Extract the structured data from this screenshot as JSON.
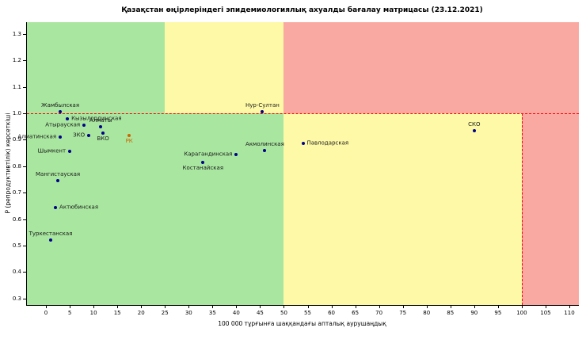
{
  "title": "Қазақстан өңірлеріндегі эпидемиологиялық ахуалды бағалау матрицасы  (23.12.2021)",
  "chart_data": {
    "type": "scatter",
    "title": "Қазақстан өңірлеріндегі эпидемиологиялық ахуалды бағалау матрицасы  (23.12.2021)",
    "xlabel": "100 000 тұрғынға шаққандағы апталық аурушаңдық",
    "ylabel": "Р (репродуктивтілік) көрсеткіші",
    "xlim": [
      -4,
      112
    ],
    "ylim": [
      0.275,
      1.345
    ],
    "grid": false,
    "legend": "none",
    "x_ticks": [
      0,
      5,
      10,
      15,
      20,
      25,
      30,
      35,
      40,
      45,
      50,
      55,
      60,
      65,
      70,
      75,
      80,
      85,
      90,
      95,
      100,
      105,
      110
    ],
    "y_ticks": [
      0.3,
      0.4,
      0.5,
      0.6,
      0.7,
      0.8,
      0.9,
      1.0,
      1.1,
      1.2,
      1.3
    ],
    "colors": {
      "green": "#a9e7a0",
      "yellow": "#fdf9a6",
      "red": "#f9a9a1",
      "point": "#00008b",
      "highlight": "#cc6600",
      "threshold": "#ff0000"
    },
    "zones": [
      {
        "name": "green-top",
        "x0": -4,
        "x1": 25,
        "y0": 1.0,
        "y1": 1.345,
        "color": "green"
      },
      {
        "name": "yellow-top",
        "x0": 25,
        "x1": 50,
        "y0": 1.0,
        "y1": 1.345,
        "color": "yellow"
      },
      {
        "name": "red-top",
        "x0": 50,
        "x1": 112,
        "y0": 1.0,
        "y1": 1.345,
        "color": "red"
      },
      {
        "name": "green-bottom",
        "x0": -4,
        "x1": 50,
        "y0": 0.275,
        "y1": 1.0,
        "color": "green"
      },
      {
        "name": "yellow-bottom",
        "x0": 50,
        "x1": 100,
        "y0": 0.275,
        "y1": 1.0,
        "color": "yellow"
      },
      {
        "name": "red-bottom",
        "x0": 100,
        "x1": 112,
        "y0": 0.275,
        "y1": 1.0,
        "color": "red"
      }
    ],
    "threshold_lines": [
      {
        "orientation": "h",
        "value": 1.0,
        "x0": -4,
        "x1": 112
      },
      {
        "orientation": "v",
        "value": 100,
        "y0": 0.275,
        "y1": 1.0
      }
    ],
    "points": [
      {
        "label": "Жамбылская",
        "x": 3,
        "y": 1.005,
        "anchor": "above"
      },
      {
        "label": "Кызылординская",
        "x": 4.5,
        "y": 0.98,
        "anchor": "right"
      },
      {
        "label": "Атырауская",
        "x": 8,
        "y": 0.955,
        "anchor": "left"
      },
      {
        "label": "Алматы",
        "x": 11.5,
        "y": 0.95,
        "anchor": "above"
      },
      {
        "label": "ЗКО",
        "x": 9,
        "y": 0.915,
        "anchor": "left"
      },
      {
        "label": "ВКО",
        "x": 12,
        "y": 0.925,
        "anchor": "below"
      },
      {
        "label": "Алматинская",
        "x": 3,
        "y": 0.91,
        "anchor": "left"
      },
      {
        "label": "РК",
        "x": 17.5,
        "y": 0.915,
        "anchor": "below",
        "color": "#cc6600",
        "label_color": "#cc6600"
      },
      {
        "label": "Шымкент",
        "x": 5,
        "y": 0.855,
        "anchor": "left"
      },
      {
        "label": "Мангистауская",
        "x": 2.5,
        "y": 0.745,
        "anchor": "above"
      },
      {
        "label": "Актюбинская",
        "x": 2,
        "y": 0.645,
        "anchor": "right"
      },
      {
        "label": "Туркестанская",
        "x": 1,
        "y": 0.52,
        "anchor": "above"
      },
      {
        "label": "Нур-Султан",
        "x": 45.5,
        "y": 1.005,
        "anchor": "above"
      },
      {
        "label": "Карагандинская",
        "x": 40,
        "y": 0.845,
        "anchor": "left"
      },
      {
        "label": "Акмолинская",
        "x": 46,
        "y": 0.86,
        "anchor": "above"
      },
      {
        "label": "Костанайская",
        "x": 33,
        "y": 0.815,
        "anchor": "below"
      },
      {
        "label": "Павлодарская",
        "x": 54,
        "y": 0.885,
        "anchor": "right"
      },
      {
        "label": "СКО",
        "x": 90,
        "y": 0.935,
        "anchor": "above"
      }
    ]
  }
}
